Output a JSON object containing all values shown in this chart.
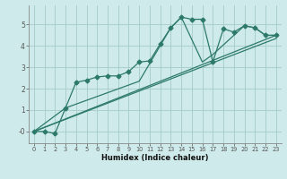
{
  "xlabel": "Humidex (Indice chaleur)",
  "bg_color": "#ceeaea",
  "grid_color": "#aacfcf",
  "line_color": "#2d7a6a",
  "xlim": [
    -0.5,
    23.5
  ],
  "ylim": [
    -0.55,
    5.9
  ],
  "yticks": [
    0,
    1,
    2,
    3,
    4,
    5
  ],
  "ytick_labels": [
    "-0",
    "1",
    "2",
    "3",
    "4",
    "5"
  ],
  "xticks": [
    0,
    1,
    2,
    3,
    4,
    5,
    6,
    7,
    8,
    9,
    10,
    11,
    12,
    13,
    14,
    15,
    16,
    17,
    18,
    19,
    20,
    21,
    22,
    23
  ],
  "line1_x": [
    0,
    1,
    2,
    3,
    4,
    5,
    6,
    7,
    8,
    9,
    10,
    11,
    12,
    13,
    14,
    15,
    16,
    17,
    18,
    19,
    20,
    21,
    22,
    23
  ],
  "line1_y": [
    0.0,
    0.0,
    -0.1,
    1.1,
    2.3,
    2.4,
    2.55,
    2.6,
    2.6,
    2.8,
    3.25,
    3.3,
    4.1,
    4.85,
    5.35,
    5.25,
    5.25,
    3.25,
    4.8,
    4.65,
    4.95,
    4.85,
    4.5,
    4.5
  ],
  "line2_x": [
    0,
    3,
    10,
    13,
    14,
    16,
    17,
    20,
    21,
    22,
    23
  ],
  "line2_y": [
    0.0,
    1.1,
    2.35,
    4.85,
    5.35,
    3.25,
    3.6,
    4.95,
    4.85,
    4.5,
    4.5
  ],
  "line3_x": [
    0,
    23
  ],
  "line3_y": [
    0.0,
    4.5
  ],
  "line4_x": [
    0,
    23
  ],
  "line4_y": [
    0.0,
    4.35
  ]
}
